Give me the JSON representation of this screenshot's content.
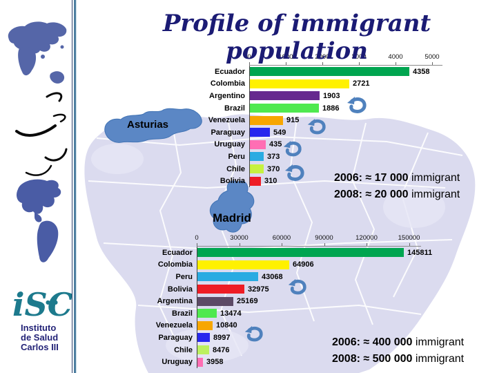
{
  "slide": {
    "title": "Profile of immigrant population",
    "region_labels": {
      "asturias": "Asturias",
      "madrid": "Madrid"
    },
    "annotations": {
      "asturias": {
        "lines": [
          {
            "bold": "2006: ≈ 17 000",
            "rest": " immigrant"
          },
          {
            "bold": "2008: ≈ 20 000",
            "rest": " immigrant"
          }
        ]
      },
      "madrid": {
        "lines": [
          {
            "bold": "2006: ≈ 400 000",
            "rest": " immigrant"
          },
          {
            "bold": "2008: ≈ 500 000",
            "rest": " immigrant"
          }
        ]
      }
    }
  },
  "logo": {
    "glyph": "iSC",
    "line1": "Instituto",
    "line2": "de Salud",
    "line3": "Carlos III"
  },
  "colors": {
    "title_navy": "#1b1b74",
    "region_blue": "#5b87c5",
    "arrow_blue": "#4f81bd",
    "map_lavender": "#dbdbef",
    "logo_teal": "#1d7a8d",
    "logo_navy": "#232377"
  },
  "chart_data": [
    {
      "type": "bar",
      "orientation": "horizontal",
      "region": "Asturias",
      "categories": [
        "Ecuador",
        "Colombia",
        "Argentino",
        "Brazil",
        "Venezuela",
        "Paraguay",
        "Uruguay",
        "Peru",
        "Chile",
        "Bolivia"
      ],
      "values": [
        4358,
        2721,
        1903,
        1886,
        915,
        549,
        435,
        373,
        370,
        310
      ],
      "colors": [
        "#00A550",
        "#FFF100",
        "#66298F",
        "#4FE94F",
        "#F7A600",
        "#2727EE",
        "#FF6EB4",
        "#29ABE2",
        "#C6F23F",
        "#EE1C25"
      ],
      "axis_ticks": [
        0,
        1000,
        2000,
        3000,
        4000,
        5000
      ],
      "xlim": [
        0,
        5000
      ],
      "grid": false,
      "value_labels": true,
      "legend": "none"
    },
    {
      "type": "bar",
      "orientation": "horizontal",
      "region": "Madrid",
      "categories": [
        "Ecuador",
        "Colombia",
        "Peru",
        "Bolivia",
        "Argentina",
        "Brazil",
        "Venezuela",
        "Paraguay",
        "Chile",
        "Uruguay"
      ],
      "values": [
        145811,
        64906,
        43068,
        32975,
        25169,
        13474,
        10840,
        8997,
        8476,
        3958
      ],
      "colors": [
        "#00A550",
        "#FFF100",
        "#29ABE2",
        "#EE1C25",
        "#5C4A66",
        "#4FE94F",
        "#F7A600",
        "#2727EE",
        "#BCF060",
        "#FF6EB4"
      ],
      "axis_ticks": [
        0,
        30000,
        60000,
        90000,
        120000,
        150000
      ],
      "xlim": [
        0,
        150000
      ],
      "grid": false,
      "value_labels": true,
      "legend": "none"
    }
  ]
}
